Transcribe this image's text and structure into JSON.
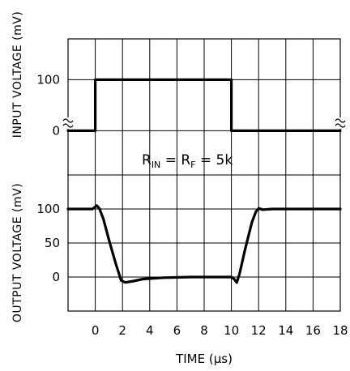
{
  "chart_data": [
    {
      "type": "line",
      "ylabel": "INPUT VOLTAGE (mV)",
      "xlabel": "",
      "xlim": [
        -2,
        18
      ],
      "ylim": [
        -20,
        180
      ],
      "yticks": [
        0,
        100
      ],
      "yticklabels": [
        "0",
        "100"
      ],
      "grid": true,
      "series": [
        {
          "x": [
            -2,
            0,
            0,
            10,
            10,
            18
          ],
          "values": [
            0,
            0,
            100,
            100,
            0,
            0
          ]
        }
      ]
    },
    {
      "type": "line",
      "ylabel": "OUTPUT VOLTAGE (mV)",
      "xlabel": "TIME (μs)",
      "xlim": [
        -2,
        18
      ],
      "ylim": [
        -50,
        200
      ],
      "yticks": [
        0,
        50,
        100
      ],
      "yticklabels": [
        "0",
        "50",
        "100"
      ],
      "xticks": [
        0,
        2,
        4,
        6,
        8,
        10,
        12,
        14,
        16,
        18
      ],
      "xticklabels": [
        "0",
        "2",
        "4",
        "6",
        "8",
        "10",
        "12",
        "14",
        "16",
        "18"
      ],
      "grid": true,
      "annotation": {
        "main": "R",
        "sub1": "IN",
        "mid": " = R",
        "sub2": "F",
        "end": " = 5k"
      },
      "series": [
        {
          "x": [
            -2,
            -0.2,
            0.1,
            0.3,
            0.6,
            1.0,
            1.5,
            1.9,
            2.2,
            2.8,
            3.5,
            5,
            7,
            9,
            10.0,
            10.2,
            10.4,
            10.6,
            11.0,
            11.5,
            11.8,
            12.0,
            12.3,
            13,
            18
          ],
          "values": [
            100,
            100,
            105,
            101,
            85,
            55,
            20,
            -5,
            -8,
            -6,
            -3,
            -1,
            0,
            0,
            0,
            -3,
            -8,
            5,
            40,
            80,
            96,
            101,
            99,
            100,
            100
          ]
        }
      ]
    }
  ]
}
